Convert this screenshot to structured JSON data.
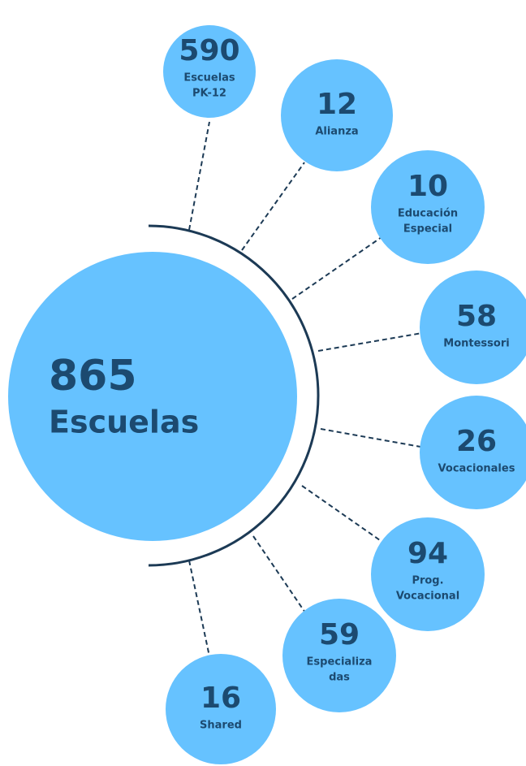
{
  "center": {
    "number": "865",
    "label": "Escuelas"
  },
  "nodes": [
    {
      "number": "590",
      "label_lines": [
        "Escuelas",
        "PK-12"
      ]
    },
    {
      "number": "12",
      "label_lines": [
        "Alianza"
      ]
    },
    {
      "number": "10",
      "label_lines": [
        "Educación",
        "Especial"
      ]
    },
    {
      "number": "58",
      "label_lines": [
        "Montessori"
      ]
    },
    {
      "number": "26",
      "label_lines": [
        "Vocacionales"
      ]
    },
    {
      "number": "94",
      "label_lines": [
        "Prog.",
        "Vocacional"
      ]
    },
    {
      "number": "59",
      "label_lines": [
        "Especializa",
        "das"
      ]
    },
    {
      "number": "16",
      "label_lines": [
        "Shared"
      ]
    }
  ]
}
